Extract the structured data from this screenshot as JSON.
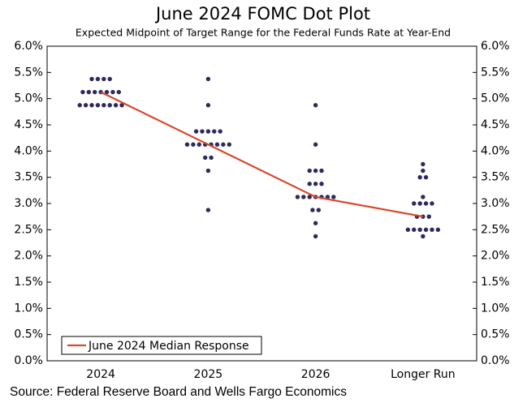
{
  "chart_data": {
    "type": "dot",
    "title": "June 2024 FOMC Dot Plot",
    "subtitle": "Expected Midpoint of Target Range for the Federal Funds Rate at Year-End",
    "source": "Source: Federal Reserve Board and Wells Fargo Economics",
    "categories": [
      "2024",
      "2025",
      "2026",
      "Longer Run"
    ],
    "dot_color": "#2e2a5e",
    "dots": [
      [
        {
          "value": 5.375,
          "count": 4
        },
        {
          "value": 5.125,
          "count": 7
        },
        {
          "value": 4.875,
          "count": 8
        }
      ],
      [
        {
          "value": 5.375,
          "count": 1
        },
        {
          "value": 4.875,
          "count": 1
        },
        {
          "value": 4.375,
          "count": 5
        },
        {
          "value": 4.125,
          "count": 8
        },
        {
          "value": 3.875,
          "count": 2
        },
        {
          "value": 3.625,
          "count": 1
        },
        {
          "value": 2.875,
          "count": 1
        }
      ],
      [
        {
          "value": 4.875,
          "count": 1
        },
        {
          "value": 4.125,
          "count": 1
        },
        {
          "value": 3.625,
          "count": 3
        },
        {
          "value": 3.375,
          "count": 3
        },
        {
          "value": 3.125,
          "count": 7
        },
        {
          "value": 2.875,
          "count": 2
        },
        {
          "value": 2.625,
          "count": 1
        },
        {
          "value": 2.375,
          "count": 1
        }
      ],
      [
        {
          "value": 3.75,
          "count": 1
        },
        {
          "value": 3.625,
          "count": 1
        },
        {
          "value": 3.5,
          "count": 2
        },
        {
          "value": 3.125,
          "count": 1
        },
        {
          "value": 3.0,
          "count": 4
        },
        {
          "value": 2.75,
          "count": 3
        },
        {
          "value": 2.5,
          "count": 6
        },
        {
          "value": 2.375,
          "count": 1
        }
      ]
    ],
    "series": [
      {
        "name": "June 2024 Median Response",
        "color": "#d9472b",
        "values": [
          5.125,
          4.125,
          3.125,
          2.75
        ]
      }
    ],
    "ylim": [
      0,
      6
    ],
    "yticks": [
      {
        "value": 0,
        "label": "0.0%"
      },
      {
        "value": 0.5,
        "label": "0.5%"
      },
      {
        "value": 1,
        "label": "1.0%"
      },
      {
        "value": 1.5,
        "label": "1.5%"
      },
      {
        "value": 2,
        "label": "2.0%"
      },
      {
        "value": 2.5,
        "label": "2.5%"
      },
      {
        "value": 3,
        "label": "3.0%"
      },
      {
        "value": 3.5,
        "label": "3.5%"
      },
      {
        "value": 4,
        "label": "4.0%"
      },
      {
        "value": 4.5,
        "label": "4.5%"
      },
      {
        "value": 5,
        "label": "5.0%"
      },
      {
        "value": 5.5,
        "label": "5.5%"
      },
      {
        "value": 6,
        "label": "6.0%"
      }
    ],
    "legend": "lower left"
  }
}
